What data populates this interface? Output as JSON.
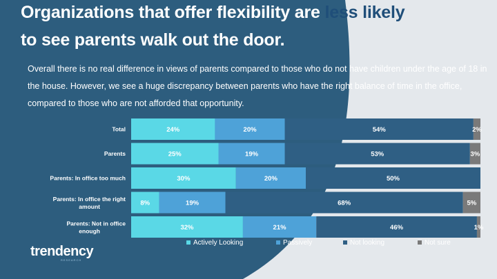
{
  "slide": {
    "title_line1_part1": "Organizations that offer flexibility are ",
    "title_line1_highlight": "less likely",
    "title_line2": "to see parents walk out the door.",
    "subtitle": "Overall there is no real difference in views of parents compared to those who do not have children under the age of 18 in the house. However, we see a huge discrepancy between parents who have the right balance of time in the office, compared to those who are not afforded that opportunity.",
    "logo_text": "trendency",
    "logo_subtext": "RESEARCH"
  },
  "colors": {
    "background_dark": "#2d5d7e",
    "background_light": "#e4e8ec",
    "highlight_text": "#1f4e79"
  },
  "chart_data": {
    "type": "bar",
    "orientation": "horizontal",
    "stacked": true,
    "categories": [
      [
        "Total"
      ],
      [
        "Parents"
      ],
      [
        "Parents: In office too much"
      ],
      [
        "Parents: In office the right",
        "amount"
      ],
      [
        "Parents: Not in office",
        "enough"
      ]
    ],
    "series": [
      {
        "name": "Actively Looking",
        "color": "#5ad8e6",
        "values": [
          24,
          25,
          30,
          8,
          32
        ]
      },
      {
        "name": "Passively",
        "color": "#4ea2d8",
        "values": [
          20,
          19,
          20,
          19,
          21
        ]
      },
      {
        "name": "Not looking",
        "color": "#2f5f84",
        "values": [
          54,
          53,
          50,
          68,
          46
        ]
      },
      {
        "name": "Not sure",
        "color": "#7a7a7a",
        "values": [
          2,
          3,
          0,
          5,
          1
        ]
      }
    ],
    "value_suffix": "%",
    "xlim": [
      0,
      100
    ],
    "legend_position": "bottom",
    "grid": false
  }
}
